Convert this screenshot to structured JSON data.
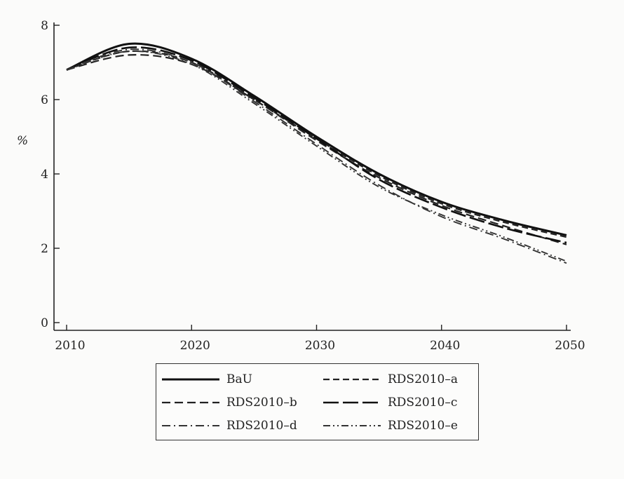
{
  "chart_data": {
    "type": "line",
    "title": "",
    "xlabel": "",
    "ylabel": "%",
    "xlim": [
      2010,
      2050
    ],
    "ylim": [
      0,
      8
    ],
    "xticks": [
      "2010",
      "2020",
      "2030",
      "2040",
      "2050"
    ],
    "yticks": [
      "0",
      "2",
      "4",
      "6",
      "8"
    ],
    "x": [
      2010,
      2015,
      2020,
      2025,
      2030,
      2035,
      2040,
      2045,
      2050
    ],
    "series": [
      {
        "name": "BaU",
        "values": [
          6.8,
          7.5,
          7.1,
          6.1,
          5.0,
          4.0,
          3.25,
          2.75,
          2.35
        ],
        "color": "#111111",
        "dash": "solid"
      },
      {
        "name": "RDS2010–a",
        "values": [
          6.8,
          7.3,
          7.0,
          6.0,
          4.95,
          3.95,
          3.2,
          2.7,
          2.3
        ],
        "color": "#222222",
        "dash": "short-dash"
      },
      {
        "name": "RDS2010–b",
        "values": [
          6.8,
          7.2,
          6.95,
          6.0,
          4.9,
          3.9,
          3.15,
          2.6,
          2.1
        ],
        "color": "#222222",
        "dash": "dash"
      },
      {
        "name": "RDS2010–c",
        "values": [
          6.8,
          7.4,
          7.05,
          6.05,
          4.95,
          3.85,
          3.1,
          2.55,
          2.15
        ],
        "color": "#111111",
        "dash": "long-dash"
      },
      {
        "name": "RDS2010–d",
        "values": [
          6.8,
          7.35,
          7.0,
          5.95,
          4.8,
          3.7,
          2.85,
          2.25,
          1.6
        ],
        "color": "#333333",
        "dash": "dash-dot"
      },
      {
        "name": "RDS2010–e",
        "values": [
          6.8,
          7.3,
          6.95,
          5.9,
          4.75,
          3.65,
          2.9,
          2.3,
          1.65
        ],
        "color": "#333333",
        "dash": "dash-dot-dot"
      }
    ],
    "grid": false,
    "legend_position": "bottom"
  }
}
